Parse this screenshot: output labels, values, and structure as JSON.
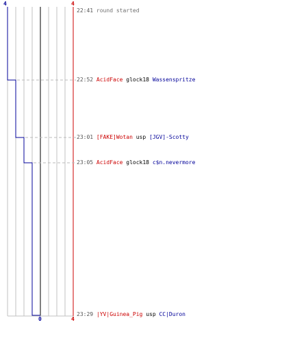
{
  "scores": {
    "blue_top": "4",
    "red_top": "4",
    "blue_bottom": "0",
    "red_bottom": "4"
  },
  "start": {
    "time": "22:41",
    "text": "round started"
  },
  "events": [
    {
      "time": "22:52",
      "killer": "AcidFace",
      "weapon": "glock18",
      "victim": "Wassenspritze"
    },
    {
      "time": "23:01",
      "killer": "[FAKE]Wotan",
      "weapon": "usp",
      "victim": "[JGV]-Scotty"
    },
    {
      "time": "23:05",
      "killer": "AcidFace",
      "weapon": "glock18",
      "victim": "c$n.nevermore"
    },
    {
      "time": "23:29",
      "killer": "|YV|Guinea_Pig",
      "weapon": "usp",
      "victim": "CC|Duron"
    }
  ],
  "colors": {
    "red_team": "#cc0000",
    "blue_team": "#000099",
    "grid": "#c0c0c0",
    "guide": "#bbbbbb"
  }
}
